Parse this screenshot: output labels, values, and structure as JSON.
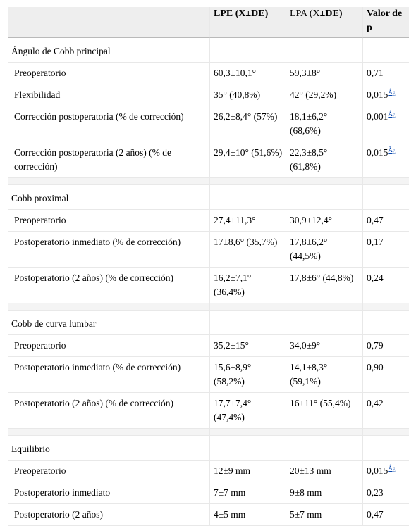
{
  "header": {
    "col1": "",
    "col2": "LPE (X±DE)",
    "col3_a": "LPA (X",
    "col3_b": "±DE",
    "col3_c": ")",
    "col4": "Valor de p"
  },
  "footnote_marker": "Â¿",
  "sections": [
    {
      "title": "Ángulo de Cobb principal",
      "rows": [
        {
          "label": "Preoperatorio",
          "lpe": "60,3±10,1°",
          "lpa": "59,3±8°",
          "p": "0,71",
          "flag": false
        },
        {
          "label": "Flexibilidad",
          "lpe": "35° (40,8%)",
          "lpa": "42° (29,2%)",
          "p": "0,015",
          "flag": true
        },
        {
          "label": "Corrección postoperatoria (% de corrección)",
          "lpe": "26,2±8,4° (57%)",
          "lpa": "18,1±6,2° (68,6%)",
          "p": "0,001",
          "flag": true
        },
        {
          "label": "Corrección postoperatoria (2 años) (% de corrección)",
          "lpe": "29,4±10° (51,6%)",
          "lpa": "22,3±8,5° (61,8%)",
          "p": "0,015",
          "flag": true
        }
      ]
    },
    {
      "title": "Cobb proximal",
      "rows": [
        {
          "label": "Preoperatorio",
          "lpe": "27,4±11,3°",
          "lpa": "30,9±12,4°",
          "p": "0,47",
          "flag": false
        },
        {
          "label": "Postoperatorio inmediato (% de corrección)",
          "lpe": "17±8,6° (35,7%)",
          "lpa": "17,8±6,2° (44,5%)",
          "p": "0,17",
          "flag": false
        },
        {
          "label": "Postoperatorio (2 años) (% de corrección)",
          "lpe": "16,2±7,1° (36,4%)",
          "lpa": "17,8±6° (44,8%)",
          "p": "0,24",
          "flag": false
        }
      ]
    },
    {
      "title": "Cobb de curva lumbar",
      "rows": [
        {
          "label": "Preoperatorio",
          "lpe": "35,2±15°",
          "lpa": "34,0±9°",
          "p": "0,79",
          "flag": false
        },
        {
          "label": "Postoperatorio inmediato (% de corrección)",
          "lpe": "15,6±8,9° (58,2%)",
          "lpa": "14,1±8,3° (59,1%)",
          "p": "0,90",
          "flag": false
        },
        {
          "label": "Postoperatorio (2 años) (% de corrección)",
          "lpe": "17,7±7,4° (47,4%)",
          "lpa": "16±11° (55,4%)",
          "p": "0,42",
          "flag": false
        }
      ]
    },
    {
      "title": "Equilibrio",
      "rows": [
        {
          "label": "Preoperatorio",
          "lpe": "12±9 mm",
          "lpa": "20±13 mm",
          "p": "0,015",
          "flag": true
        },
        {
          "label": "Postoperatorio inmediato",
          "lpe": "7±7 mm",
          "lpa": "9±8 mm",
          "p": "0,23",
          "flag": false
        },
        {
          "label": "Postoperatorio (2 años)",
          "lpe": "4±5 mm",
          "lpa": "5±7 mm",
          "p": "0,47",
          "flag": false
        }
      ]
    }
  ]
}
